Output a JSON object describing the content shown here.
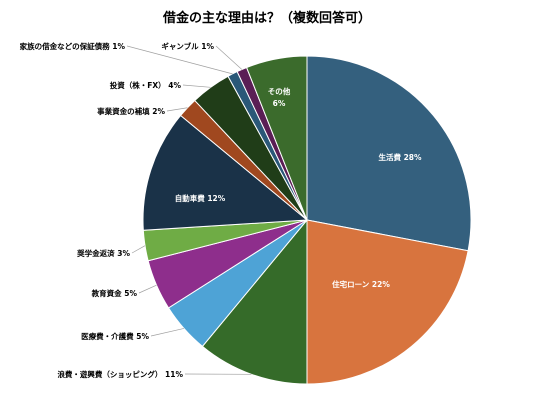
{
  "chart_data": {
    "type": "pie",
    "title": "借金の主な理由は？（複数回答可）",
    "slices": [
      {
        "label": "生活費",
        "value": 28,
        "display": "28%",
        "color": "#34607e",
        "inside": true,
        "text": "#ffffff"
      },
      {
        "label": "住宅ローン",
        "value": 22,
        "display": "22%",
        "color": "#d8743e",
        "inside": true,
        "text": "#ffffff"
      },
      {
        "label": "浪費・遊興費（ショッピング）",
        "value": 11,
        "display": "11%",
        "color": "#356b29",
        "inside": false,
        "text": "#000000"
      },
      {
        "label": "医療費・介護費",
        "value": 5,
        "display": "5%",
        "color": "#4ea3d6",
        "inside": false,
        "text": "#000000"
      },
      {
        "label": "教育資金",
        "value": 5,
        "display": "5%",
        "color": "#8e2e8c",
        "inside": false,
        "text": "#000000"
      },
      {
        "label": "奨学金返済",
        "value": 3,
        "display": "3%",
        "color": "#6fac45",
        "inside": false,
        "text": "#000000"
      },
      {
        "label": "自動車費",
        "value": 12,
        "display": "12%",
        "color": "#1a3248",
        "inside": true,
        "text": "#ffffff"
      },
      {
        "label": "事業資金の補填",
        "value": 2,
        "display": "2%",
        "color": "#a0481f",
        "inside": false,
        "text": "#000000"
      },
      {
        "label": "投資（株・FX）",
        "value": 4,
        "display": "4%",
        "color": "#203d18",
        "inside": false,
        "text": "#000000"
      },
      {
        "label": "家族の借金などの保証債務",
        "value": 1,
        "display": "1%",
        "color": "#2a5878",
        "inside": false,
        "text": "#000000"
      },
      {
        "label": "ギャンブル",
        "value": 1,
        "display": "1%",
        "color": "#5a1e55",
        "inside": false,
        "text": "#000000"
      },
      {
        "label": "その他",
        "value": 6,
        "display": "6%",
        "color": "#3b6b2c",
        "inside": true,
        "text": "#ffffff"
      }
    ]
  }
}
